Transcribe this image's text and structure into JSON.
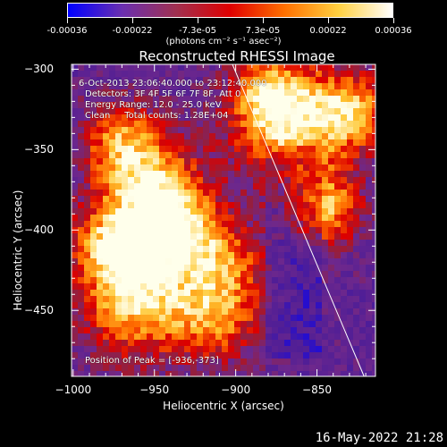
{
  "colorbar": {
    "ticks": [
      "-0.00036",
      "-0.00022",
      "-7.3e-05",
      "7.3e-05",
      "0.00022",
      "0.00036"
    ],
    "unit": "(photons cm⁻² s⁻¹ asec⁻²)",
    "colors": [
      "#0000ff",
      "#6a2fb0",
      "#a03050",
      "#e00000",
      "#ff7000",
      "#ffd040",
      "#ffffff"
    ]
  },
  "title": "Reconstructed RHESSI Image",
  "info": {
    "time": "6-Oct-2013 23:06:40.000 to 23:12:40.000",
    "detectors": "Detectors: 3F 4F 5F 6F 7F 8F, Att 0",
    "energy": "Energy Range: 12.0 - 25.0 keV",
    "clean": "Clean     Total counts: 1.28E+04",
    "peak": "Position of Peak = [-936,-373]"
  },
  "timestamp": "16-May-2022 21:28",
  "chart_data": {
    "type": "heatmap",
    "title": "Reconstructed RHESSI Image",
    "xlabel": "Heliocentric X (arcsec)",
    "ylabel": "Heliocentric Y (arcsec)",
    "xlim": [
      -1001,
      -814
    ],
    "ylim": [
      -491,
      -297
    ],
    "xticks": [
      -1000,
      -950,
      -900,
      -850
    ],
    "yticks": [
      -300,
      -350,
      -400,
      -450
    ],
    "colorbar_range": [
      -0.00036,
      0.00036
    ],
    "peak": [
      -936,
      -373
    ],
    "limb_line": [
      [
        -902,
        -297
      ],
      [
        -821,
        -491
      ]
    ]
  }
}
